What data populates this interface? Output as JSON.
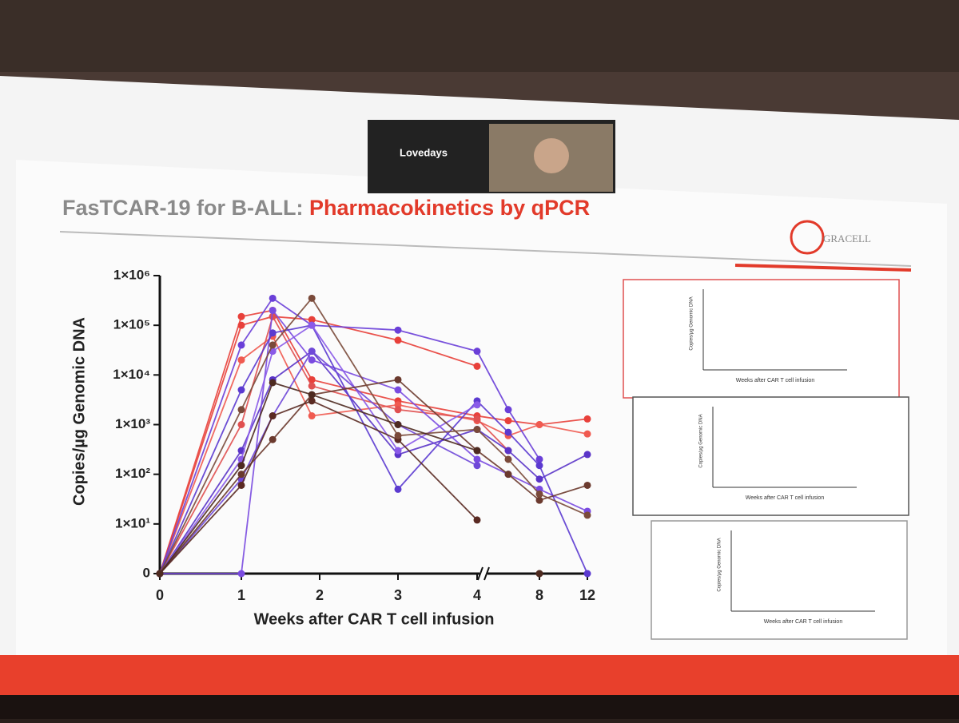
{
  "video_tile": {
    "name": "Lovedays"
  },
  "slide": {
    "title_prefix": "FasTCAR-19 for B-ALL: ",
    "title_highlight": "Pharmacokinetics by qPCR",
    "logo": "GRACELL"
  },
  "chart_data": {
    "type": "line",
    "ylabel": "Copies/µg Genomic DNA",
    "xlabel": "Weeks after CAR T cell infusion",
    "x": [
      0,
      1,
      1.4,
      1.9,
      3,
      4,
      6,
      8,
      12
    ],
    "xlim": [
      0,
      12
    ],
    "xticks": [
      0,
      1,
      2,
      3,
      4,
      8,
      12
    ],
    "ylim": [
      0,
      1000000
    ],
    "yscale": "log",
    "yticks": [
      0,
      {
        "value": 10,
        "label": "1×10¹"
      },
      {
        "value": 100,
        "label": "1×10²"
      },
      {
        "value": 1000,
        "label": "1×10³"
      },
      {
        "value": 10000,
        "label": "1×10⁴"
      },
      {
        "value": 100000,
        "label": "1×10⁵"
      },
      {
        "value": 1000000,
        "label": "1×10⁶"
      }
    ],
    "series": [
      {
        "color": "#e8403a",
        "values": [
          0,
          150000,
          200000,
          8000,
          3000,
          1500,
          1200,
          1000,
          1300
        ]
      },
      {
        "color": "#e8403a",
        "values": [
          0,
          100000,
          150000,
          130000,
          50000,
          15000,
          null,
          null,
          null
        ]
      },
      {
        "color": "#f05a50",
        "values": [
          0,
          20000,
          60000,
          1500,
          2500,
          1200,
          600,
          1000,
          650
        ]
      },
      {
        "color": "#e05050",
        "values": [
          0,
          1000,
          150000,
          6000,
          2000,
          1300,
          300,
          null,
          null
        ]
      },
      {
        "color": "#6a3fd8",
        "values": [
          0,
          40000,
          350000,
          100000,
          80000,
          30000,
          2000,
          200,
          null
        ]
      },
      {
        "color": "#5a34c8",
        "values": [
          0,
          300,
          8000,
          30000,
          250,
          800,
          300,
          80,
          250
        ]
      },
      {
        "color": "#7a4be0",
        "values": [
          0,
          0,
          200000,
          20000,
          5000,
          200,
          100,
          50,
          18
        ]
      },
      {
        "color": "#5b3ad0",
        "values": [
          0,
          5000,
          70000,
          100000,
          50,
          3000,
          700,
          150,
          0
        ]
      },
      {
        "color": "#8a5ae8",
        "values": [
          0,
          200,
          30000,
          100000,
          300,
          2500,
          null,
          null,
          null
        ]
      },
      {
        "color": "#6f48d8",
        "values": [
          0,
          80,
          1500,
          30000,
          1000,
          150,
          null,
          null,
          null
        ]
      },
      {
        "color": "#6b3a2e",
        "values": [
          0,
          100,
          500,
          4000,
          8000,
          300,
          100,
          30,
          60
        ]
      },
      {
        "color": "#5a2a22",
        "values": [
          0,
          60,
          1500,
          3000,
          500,
          12,
          null,
          0,
          null
        ]
      },
      {
        "color": "#7a4a3a",
        "values": [
          0,
          2000,
          40000,
          350000,
          600,
          800,
          200,
          40,
          15
        ]
      },
      {
        "color": "#4e2a20",
        "values": [
          0,
          150,
          7000,
          4000,
          1000,
          300,
          null,
          0,
          null
        ]
      }
    ]
  },
  "mini_panels": [
    {
      "ylabel": "Copies/µg Genomic DNA",
      "xlabel": "Weeks after CAR T cell infusion"
    },
    {
      "ylabel": "Copies/µg Genomic DNA",
      "xlabel": "Weeks after CAR T cell infusion"
    },
    {
      "ylabel": "Copies/µg Genomic DNA",
      "xlabel": "Weeks after CAR T cell infusion"
    }
  ]
}
